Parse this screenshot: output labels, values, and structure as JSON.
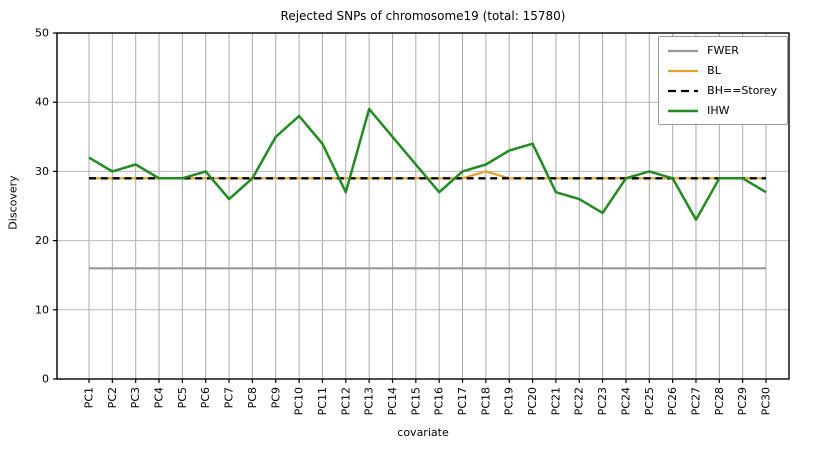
{
  "figure": {
    "title": "Rejected SNPs of chromosome19 (total: 15780)"
  },
  "chart_data": {
    "type": "line",
    "title": "Rejected SNPs of chromosome19 (total: 15780)",
    "xlabel": "covariate",
    "ylabel": "Discovery",
    "ylim": [
      0,
      50
    ],
    "yticks": [
      0,
      10,
      20,
      30,
      40,
      50
    ],
    "grid": true,
    "legend_position": "upper right",
    "categories": [
      "PC1",
      "PC2",
      "PC3",
      "PC4",
      "PC5",
      "PC6",
      "PC7",
      "PC8",
      "PC9",
      "PC10",
      "PC11",
      "PC12",
      "PC13",
      "PC14",
      "PC15",
      "PC16",
      "PC17",
      "PC18",
      "PC19",
      "PC20",
      "PC21",
      "PC22",
      "PC23",
      "PC24",
      "PC25",
      "PC26",
      "PC27",
      "PC28",
      "PC29",
      "PC30"
    ],
    "series": [
      {
        "name": "FWER",
        "color": "#999999",
        "style": "solid",
        "width": 2.2,
        "values": [
          16,
          16,
          16,
          16,
          16,
          16,
          16,
          16,
          16,
          16,
          16,
          16,
          16,
          16,
          16,
          16,
          16,
          16,
          16,
          16,
          16,
          16,
          16,
          16,
          16,
          16,
          16,
          16,
          16,
          16
        ]
      },
      {
        "name": "BL",
        "color": "#e2a32d",
        "style": "solid",
        "width": 2.2,
        "values": [
          29,
          29,
          29,
          29,
          29,
          29,
          29,
          29,
          29,
          29,
          29,
          29,
          29,
          29,
          29,
          29,
          29,
          30,
          29,
          29,
          29,
          29,
          29,
          29,
          29,
          29,
          29,
          29,
          29,
          29
        ]
      },
      {
        "name": "BH==Storey",
        "color": "#000000",
        "style": "dashed",
        "width": 2.3,
        "values": [
          29,
          29,
          29,
          29,
          29,
          29,
          29,
          29,
          29,
          29,
          29,
          29,
          29,
          29,
          29,
          29,
          29,
          29,
          29,
          29,
          29,
          29,
          29,
          29,
          29,
          29,
          29,
          29,
          29,
          29
        ]
      },
      {
        "name": "IHW",
        "color": "#228b22",
        "style": "solid",
        "width": 2.5,
        "values": [
          32,
          30,
          31,
          29,
          29,
          30,
          26,
          29,
          35,
          38,
          34,
          27,
          39,
          35,
          31,
          27,
          30,
          31,
          33,
          34,
          27,
          26,
          24,
          29,
          30,
          29,
          23,
          29,
          29,
          27
        ]
      }
    ]
  }
}
